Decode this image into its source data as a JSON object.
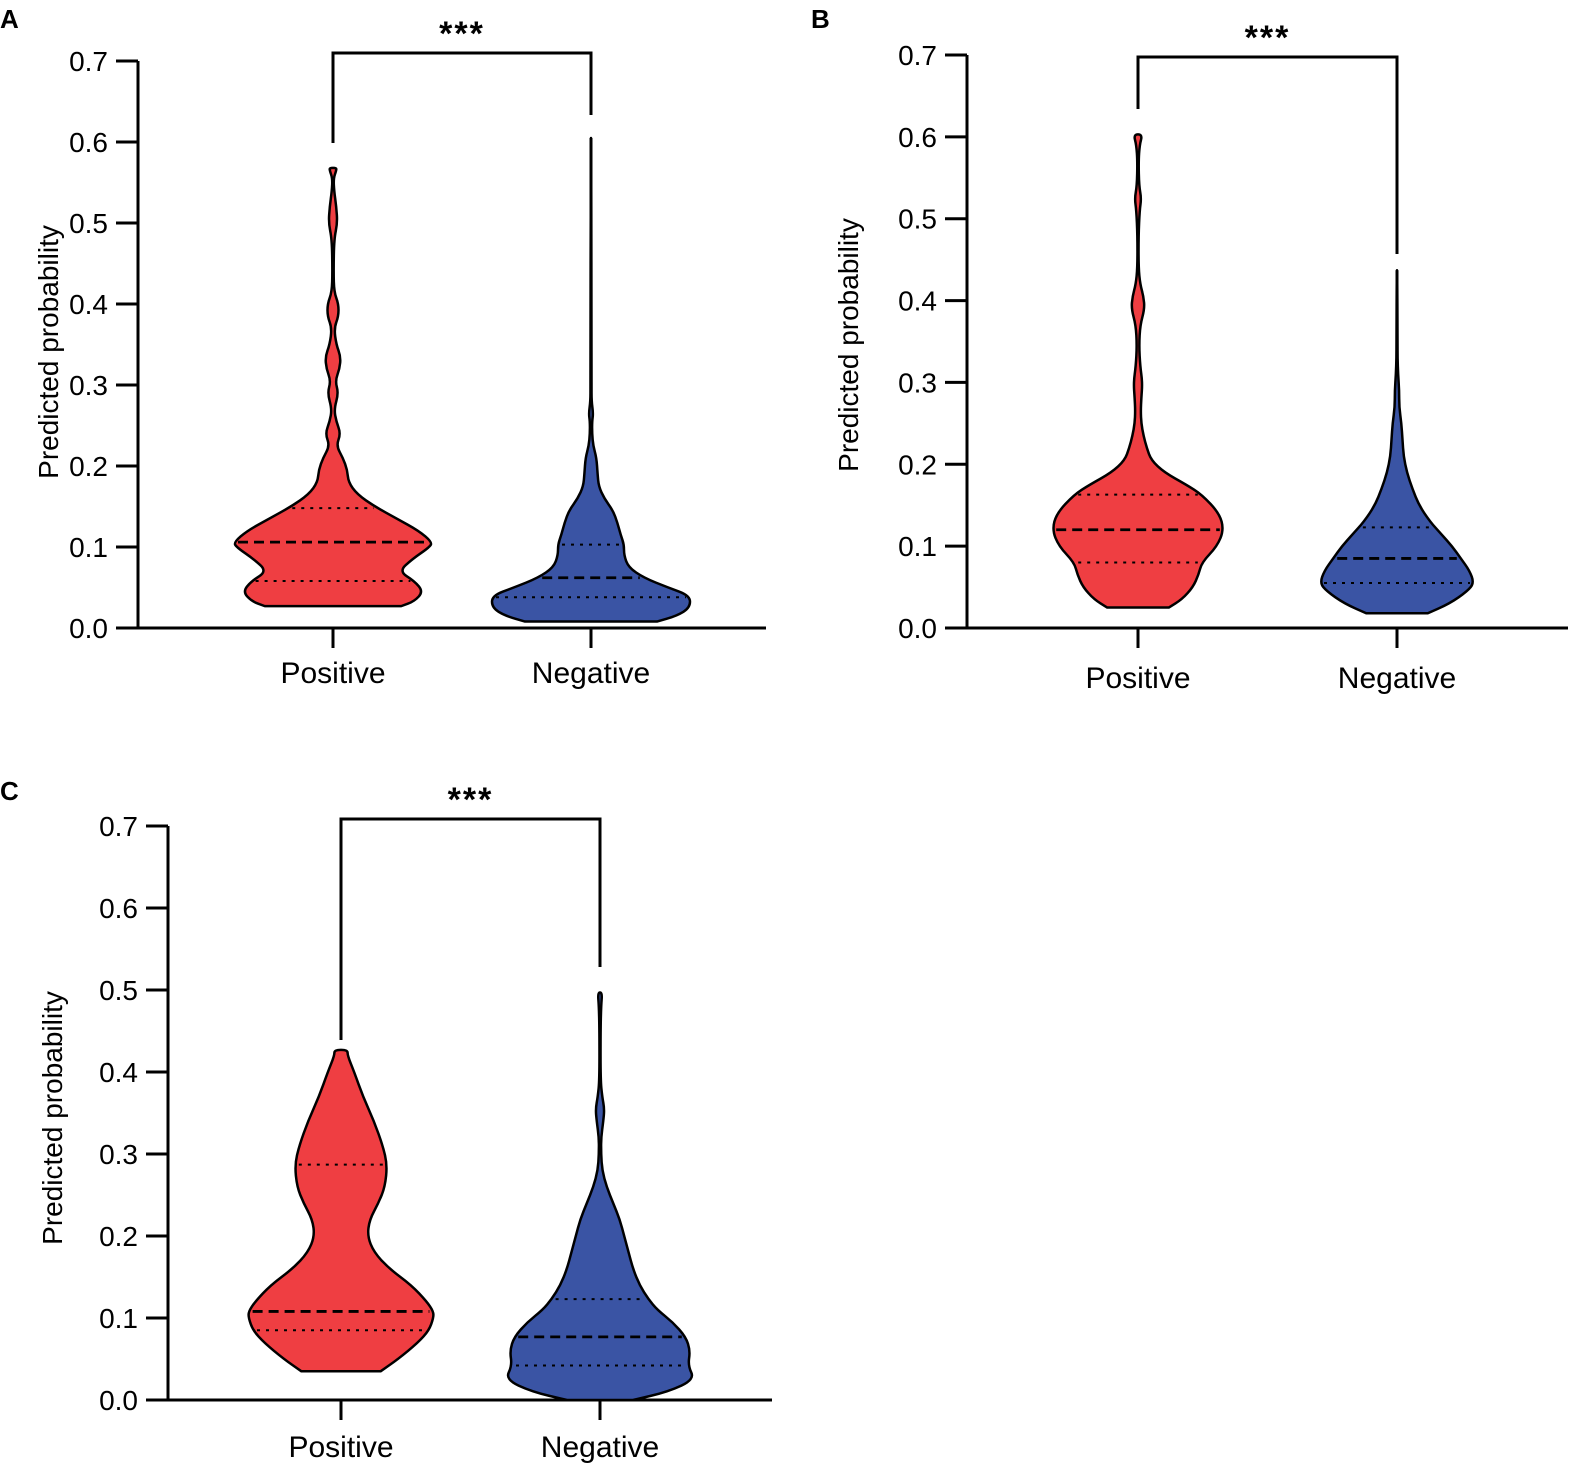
{
  "chart_data": [
    {
      "panel": "A",
      "type": "violin",
      "title": "",
      "xlabel": "",
      "ylabel": "Predicted probability",
      "ylim": [
        0,
        0.7
      ],
      "yticks": [
        "0.0",
        "0.1",
        "0.2",
        "0.3",
        "0.4",
        "0.5",
        "0.6",
        "0.7"
      ],
      "categories": [
        "Positive",
        "Negative"
      ],
      "significance": "***",
      "series": [
        {
          "name": "Positive",
          "color": "#ef3e42",
          "min": 0.027,
          "max": 0.568,
          "median": 0.106,
          "q1": 0.058,
          "q3": 0.148,
          "density": [
            [
              0.027,
              0.62
            ],
            [
              0.033,
              0.74
            ],
            [
              0.045,
              0.82
            ],
            [
              0.058,
              0.74
            ],
            [
              0.07,
              0.6
            ],
            [
              0.085,
              0.72
            ],
            [
              0.1,
              0.88
            ],
            [
              0.106,
              0.9
            ],
            [
              0.12,
              0.78
            ],
            [
              0.135,
              0.58
            ],
            [
              0.15,
              0.38
            ],
            [
              0.165,
              0.22
            ],
            [
              0.18,
              0.14
            ],
            [
              0.195,
              0.13
            ],
            [
              0.21,
              0.09
            ],
            [
              0.225,
              0.03
            ],
            [
              0.24,
              0.07
            ],
            [
              0.255,
              0.03
            ],
            [
              0.27,
              0.01
            ],
            [
              0.29,
              0.05
            ],
            [
              0.305,
              0.02
            ],
            [
              0.32,
              0.06
            ],
            [
              0.335,
              0.07
            ],
            [
              0.35,
              0.03
            ],
            [
              0.37,
              0.01
            ],
            [
              0.385,
              0.05
            ],
            [
              0.4,
              0.05
            ],
            [
              0.415,
              0.01
            ],
            [
              0.44,
              0.005
            ],
            [
              0.48,
              0.01
            ],
            [
              0.5,
              0.04
            ],
            [
              0.52,
              0.03
            ],
            [
              0.54,
              0.01
            ],
            [
              0.555,
              0.005
            ],
            [
              0.565,
              0.03
            ],
            [
              0.568,
              0.03
            ]
          ]
        },
        {
          "name": "Negative",
          "color": "#3a54a4",
          "min": 0.008,
          "max": 0.605,
          "median": 0.062,
          "q1": 0.038,
          "q3": 0.103,
          "density": [
            [
              0.008,
              0.6
            ],
            [
              0.015,
              0.78
            ],
            [
              0.025,
              0.9
            ],
            [
              0.04,
              0.9
            ],
            [
              0.05,
              0.7
            ],
            [
              0.062,
              0.48
            ],
            [
              0.075,
              0.34
            ],
            [
              0.09,
              0.3
            ],
            [
              0.103,
              0.3
            ],
            [
              0.115,
              0.27
            ],
            [
              0.13,
              0.24
            ],
            [
              0.145,
              0.2
            ],
            [
              0.16,
              0.12
            ],
            [
              0.175,
              0.07
            ],
            [
              0.19,
              0.06
            ],
            [
              0.21,
              0.05
            ],
            [
              0.225,
              0.02
            ],
            [
              0.24,
              0.01
            ],
            [
              0.255,
              0.01
            ],
            [
              0.265,
              0.02
            ],
            [
              0.28,
              0.005
            ],
            [
              0.3,
              0.005
            ],
            [
              0.605,
              0.002
            ]
          ]
        }
      ]
    },
    {
      "panel": "B",
      "type": "violin",
      "title": "",
      "xlabel": "",
      "ylabel": "Predicted probability",
      "ylim": [
        0,
        0.7
      ],
      "yticks": [
        "0.0",
        "0.1",
        "0.2",
        "0.3",
        "0.4",
        "0.5",
        "0.6",
        "0.7"
      ],
      "categories": [
        "Positive",
        "Negative"
      ],
      "significance": "***",
      "series": [
        {
          "name": "Positive",
          "color": "#ef3e42",
          "min": 0.025,
          "max": 0.603,
          "median": 0.12,
          "q1": 0.08,
          "q3": 0.163,
          "density": [
            [
              0.025,
              0.28
            ],
            [
              0.035,
              0.4
            ],
            [
              0.05,
              0.5
            ],
            [
              0.065,
              0.55
            ],
            [
              0.08,
              0.58
            ],
            [
              0.1,
              0.72
            ],
            [
              0.12,
              0.78
            ],
            [
              0.14,
              0.74
            ],
            [
              0.163,
              0.58
            ],
            [
              0.175,
              0.44
            ],
            [
              0.19,
              0.24
            ],
            [
              0.205,
              0.12
            ],
            [
              0.22,
              0.08
            ],
            [
              0.235,
              0.05
            ],
            [
              0.25,
              0.03
            ],
            [
              0.265,
              0.025
            ],
            [
              0.28,
              0.03
            ],
            [
              0.3,
              0.04
            ],
            [
              0.32,
              0.02
            ],
            [
              0.345,
              0.01
            ],
            [
              0.37,
              0.02
            ],
            [
              0.39,
              0.06
            ],
            [
              0.405,
              0.05
            ],
            [
              0.42,
              0.02
            ],
            [
              0.44,
              0.005
            ],
            [
              0.48,
              0.005
            ],
            [
              0.51,
              0.015
            ],
            [
              0.525,
              0.03
            ],
            [
              0.54,
              0.01
            ],
            [
              0.57,
              0.005
            ],
            [
              0.59,
              0.015
            ],
            [
              0.603,
              0.04
            ]
          ]
        },
        {
          "name": "Negative",
          "color": "#3a54a4",
          "min": 0.018,
          "max": 0.437,
          "median": 0.085,
          "q1": 0.055,
          "q3": 0.123,
          "density": [
            [
              0.018,
              0.28
            ],
            [
              0.03,
              0.48
            ],
            [
              0.045,
              0.64
            ],
            [
              0.055,
              0.7
            ],
            [
              0.07,
              0.66
            ],
            [
              0.085,
              0.58
            ],
            [
              0.1,
              0.5
            ],
            [
              0.115,
              0.4
            ],
            [
              0.13,
              0.3
            ],
            [
              0.15,
              0.2
            ],
            [
              0.17,
              0.14
            ],
            [
              0.19,
              0.09
            ],
            [
              0.21,
              0.06
            ],
            [
              0.23,
              0.05
            ],
            [
              0.25,
              0.04
            ],
            [
              0.27,
              0.02
            ],
            [
              0.29,
              0.02
            ],
            [
              0.31,
              0.01
            ],
            [
              0.33,
              0.005
            ],
            [
              0.35,
              0.005
            ],
            [
              0.437,
              0.002
            ]
          ]
        }
      ]
    },
    {
      "panel": "C",
      "type": "violin",
      "title": "",
      "xlabel": "",
      "ylabel": "Predicted probability",
      "ylim": [
        0,
        0.7
      ],
      "yticks": [
        "0.0",
        "0.1",
        "0.2",
        "0.3",
        "0.4",
        "0.5",
        "0.6",
        "0.7"
      ],
      "categories": [
        "Positive",
        "Negative"
      ],
      "significance": "***",
      "series": [
        {
          "name": "Positive",
          "color": "#ef3e42",
          "min": 0.035,
          "max": 0.427,
          "median": 0.108,
          "q1": 0.085,
          "q3": 0.287,
          "density": [
            [
              0.035,
              0.36
            ],
            [
              0.05,
              0.52
            ],
            [
              0.07,
              0.7
            ],
            [
              0.085,
              0.8
            ],
            [
              0.1,
              0.84
            ],
            [
              0.108,
              0.84
            ],
            [
              0.12,
              0.78
            ],
            [
              0.14,
              0.64
            ],
            [
              0.16,
              0.44
            ],
            [
              0.18,
              0.3
            ],
            [
              0.2,
              0.24
            ],
            [
              0.22,
              0.26
            ],
            [
              0.24,
              0.34
            ],
            [
              0.26,
              0.4
            ],
            [
              0.287,
              0.42
            ],
            [
              0.31,
              0.38
            ],
            [
              0.34,
              0.3
            ],
            [
              0.37,
              0.2
            ],
            [
              0.4,
              0.12
            ],
            [
              0.42,
              0.06
            ],
            [
              0.427,
              0.06
            ]
          ]
        },
        {
          "name": "Negative",
          "color": "#3a54a4",
          "min": 0.0,
          "max": 0.497,
          "median": 0.077,
          "q1": 0.042,
          "q3": 0.123,
          "density": [
            [
              0.0,
              0.3
            ],
            [
              0.01,
              0.62
            ],
            [
              0.025,
              0.86
            ],
            [
              0.042,
              0.8
            ],
            [
              0.06,
              0.82
            ],
            [
              0.077,
              0.78
            ],
            [
              0.095,
              0.66
            ],
            [
              0.11,
              0.52
            ],
            [
              0.123,
              0.44
            ],
            [
              0.14,
              0.36
            ],
            [
              0.16,
              0.3
            ],
            [
              0.18,
              0.26
            ],
            [
              0.2,
              0.22
            ],
            [
              0.22,
              0.18
            ],
            [
              0.24,
              0.12
            ],
            [
              0.26,
              0.06
            ],
            [
              0.28,
              0.02
            ],
            [
              0.3,
              0.01
            ],
            [
              0.32,
              0.01
            ],
            [
              0.34,
              0.03
            ],
            [
              0.355,
              0.04
            ],
            [
              0.37,
              0.02
            ],
            [
              0.39,
              0.005
            ],
            [
              0.45,
              0.005
            ],
            [
              0.48,
              0.01
            ],
            [
              0.497,
              0.02
            ]
          ]
        }
      ]
    }
  ]
}
